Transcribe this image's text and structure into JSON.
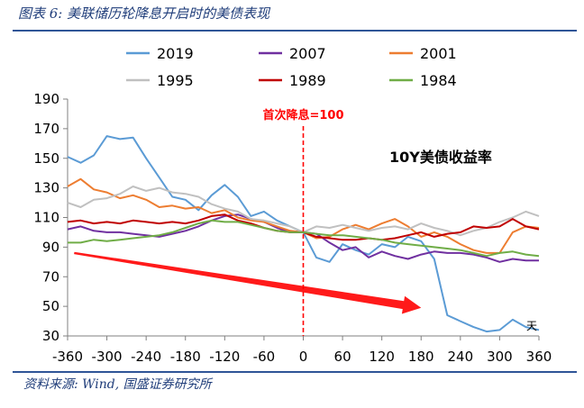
{
  "figure": {
    "title": "图表 6: 美联储历轮降息开启时的美债表现",
    "source": "资料来源: Wind, 国盛证券研究所"
  },
  "chart_data": {
    "type": "line",
    "title": "10Y美债收益率",
    "xlabel": "",
    "ylabel": "",
    "x_unit_label": "天",
    "annotation": "首次降息=100",
    "annotation_x": 0,
    "xlim": [
      -360,
      360
    ],
    "ylim": [
      30,
      190
    ],
    "xticks": [
      -360,
      -300,
      -240,
      -180,
      -120,
      -60,
      0,
      60,
      120,
      180,
      240,
      300,
      360
    ],
    "yticks": [
      30,
      50,
      70,
      90,
      110,
      130,
      150,
      170,
      190
    ],
    "trend_arrow": {
      "from": [
        -350,
        86
      ],
      "to": [
        180,
        49
      ],
      "color": "#ff1a1a"
    },
    "x": [
      -360,
      -340,
      -320,
      -300,
      -280,
      -260,
      -240,
      -220,
      -200,
      -180,
      -160,
      -140,
      -120,
      -100,
      -80,
      -60,
      -40,
      -20,
      0,
      20,
      40,
      60,
      80,
      100,
      120,
      140,
      160,
      180,
      200,
      220,
      240,
      260,
      280,
      300,
      320,
      340,
      360
    ],
    "series": [
      {
        "name": "2019",
        "color": "#5b9bd5",
        "values": [
          151,
          147,
          152,
          165,
          163,
          164,
          150,
          137,
          124,
          122,
          115,
          125,
          132,
          124,
          111,
          114,
          108,
          104,
          100,
          83,
          80,
          92,
          88,
          85,
          92,
          90,
          97,
          94,
          82,
          44,
          40,
          36,
          33,
          34,
          41,
          36,
          34
        ]
      },
      {
        "name": "2007",
        "color": "#7030a0",
        "values": [
          102,
          104,
          101,
          100,
          100,
          99,
          98,
          97,
          99,
          101,
          104,
          108,
          111,
          112,
          109,
          107,
          103,
          100,
          100,
          99,
          93,
          88,
          90,
          83,
          87,
          84,
          82,
          85,
          87,
          86,
          86,
          85,
          83,
          80,
          82,
          81,
          81
        ]
      },
      {
        "name": "2001",
        "color": "#ed7d31",
        "values": [
          131,
          136,
          129,
          127,
          123,
          125,
          122,
          117,
          118,
          116,
          117,
          113,
          115,
          110,
          108,
          107,
          104,
          101,
          100,
          96,
          97,
          102,
          105,
          102,
          106,
          109,
          104,
          97,
          100,
          97,
          92,
          88,
          86,
          86,
          100,
          104,
          103
        ]
      },
      {
        "name": "1995",
        "color": "#c0c0c0",
        "values": [
          120,
          117,
          122,
          123,
          126,
          131,
          128,
          130,
          127,
          126,
          124,
          119,
          116,
          114,
          109,
          108,
          106,
          104,
          100,
          104,
          103,
          105,
          103,
          101,
          103,
          104,
          102,
          106,
          103,
          101,
          98,
          101,
          103,
          107,
          110,
          114,
          111
        ]
      },
      {
        "name": "1989",
        "color": "#c00000",
        "values": [
          107,
          108,
          106,
          107,
          106,
          108,
          107,
          106,
          107,
          106,
          108,
          111,
          112,
          108,
          106,
          103,
          101,
          100,
          100,
          97,
          96,
          95,
          95,
          96,
          95,
          96,
          98,
          100,
          97,
          99,
          100,
          104,
          103,
          104,
          109,
          104,
          102
        ]
      },
      {
        "name": "1984",
        "color": "#70ad47",
        "values": [
          93,
          93,
          95,
          94,
          95,
          96,
          97,
          98,
          100,
          103,
          106,
          108,
          107,
          107,
          105,
          103,
          101,
          100,
          100,
          99,
          98,
          98,
          97,
          96,
          95,
          93,
          92,
          91,
          90,
          89,
          88,
          86,
          84,
          86,
          87,
          85,
          84
        ]
      }
    ]
  }
}
